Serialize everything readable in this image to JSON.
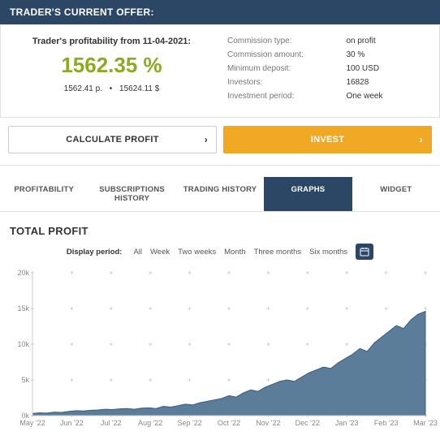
{
  "header": {
    "title": "TRADER'S CURRENT OFFER:"
  },
  "offer": {
    "profitability_label": "Trader's profitability from 11-04-2021:",
    "profitability_pct": "1562.35 %",
    "points": "1562.41 p.",
    "usd": "15624.11 $",
    "rows": [
      {
        "label": "Commission type:",
        "value": "on profit"
      },
      {
        "label": "Commission amount:",
        "value": "30 %"
      },
      {
        "label": "Minimum deposit:",
        "value": "100 USD"
      },
      {
        "label": "Investors:",
        "value": "16828"
      },
      {
        "label": "Investment period:",
        "value": "One week"
      }
    ]
  },
  "buttons": {
    "calculate": "CALCULATE PROFIT",
    "invest": "INVEST"
  },
  "tabs": {
    "items": [
      "PROFITABILITY",
      "SUBSCRIPTIONS HISTORY",
      "TRADING HISTORY",
      "GRAPHS",
      "WIDGET"
    ],
    "active_index": 3
  },
  "section": {
    "title": "TOTAL PROFIT"
  },
  "periods": {
    "label": "Display period:",
    "options": [
      "All",
      "Week",
      "Two weeks",
      "Month",
      "Three months",
      "Six months"
    ]
  },
  "chart": {
    "type": "area",
    "background": "#ffffff",
    "area_fill": "#5c7d9a",
    "area_stroke": "#3b5c78",
    "grid_color": "#c8c8c8",
    "axis_color": "#cccccc",
    "label_color": "#888888",
    "label_fontsize": 9,
    "ylim": [
      0,
      20000
    ],
    "y_ticks": [
      0,
      5000,
      10000,
      15000,
      20000
    ],
    "y_tick_labels": [
      "0k",
      "5k",
      "10k",
      "15k",
      "20k"
    ],
    "x_categories": [
      "May '22",
      "Jun '22",
      "Jul '22",
      "Aug '22",
      "Sep '22",
      "Oct '22",
      "Nov '22",
      "Dec '22",
      "Jan '23",
      "Feb '23",
      "Mar '23"
    ],
    "values": [
      300,
      400,
      350,
      500,
      450,
      600,
      700,
      650,
      750,
      800,
      900,
      850,
      950,
      1000,
      900,
      1050,
      1100,
      1000,
      1300,
      1200,
      1400,
      1600,
      1500,
      1800,
      2000,
      2200,
      2400,
      2800,
      2600,
      3200,
      3600,
      3400,
      4000,
      4400,
      4800,
      5000,
      4800,
      5400,
      6000,
      6400,
      6800,
      6600,
      7400,
      8000,
      8600,
      9400,
      9000,
      10200,
      11000,
      11800,
      12600,
      12200,
      13400,
      14200,
      14600
    ]
  },
  "colors": {
    "header_bg": "#2c4766",
    "accent_green": "#8aab22",
    "accent_orange": "#f0a825",
    "border": "#e0e0e0",
    "text_muted": "#777777"
  }
}
